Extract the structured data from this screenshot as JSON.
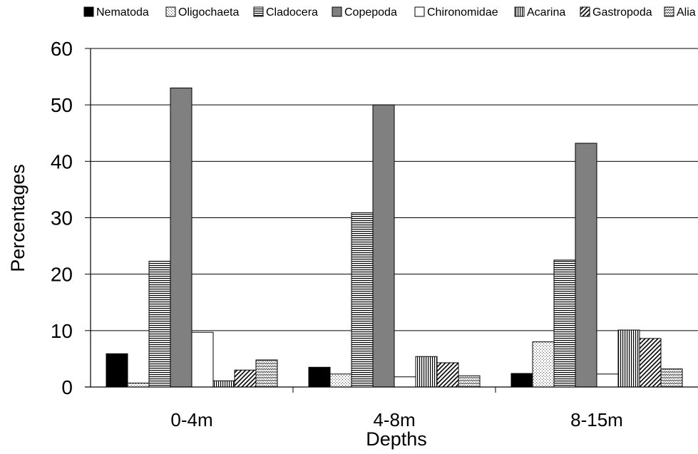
{
  "chart_data": {
    "type": "bar",
    "title": "",
    "xlabel": "Depths",
    "ylabel": "Percentages",
    "categories": [
      "0-4m",
      "4-8m",
      "8-15m"
    ],
    "ylim": [
      0,
      60
    ],
    "yticks": [
      0,
      10,
      20,
      30,
      40,
      50,
      60
    ],
    "grid": true,
    "legend_position": "top",
    "series": [
      {
        "name": "Nematoda",
        "pattern": "solid-black",
        "values": [
          5.9,
          3.5,
          2.4
        ]
      },
      {
        "name": "Oligochaeta",
        "pattern": "dots",
        "values": [
          0.7,
          2.3,
          8.0
        ]
      },
      {
        "name": "Cladocera",
        "pattern": "horizontal-lines",
        "values": [
          22.3,
          30.9,
          22.5
        ]
      },
      {
        "name": "Copepoda",
        "pattern": "solid-gray",
        "values": [
          53.0,
          50.0,
          43.2
        ]
      },
      {
        "name": "Chironomidae",
        "pattern": "white",
        "values": [
          9.7,
          1.8,
          2.3
        ]
      },
      {
        "name": "Acarina",
        "pattern": "vertical-lines",
        "values": [
          1.1,
          5.4,
          10.1
        ]
      },
      {
        "name": "Gastropoda",
        "pattern": "diagonal-lines",
        "values": [
          3.0,
          4.3,
          8.6
        ]
      },
      {
        "name": "Alia",
        "pattern": "zigzag",
        "values": [
          4.8,
          2.0,
          3.2
        ]
      }
    ]
  }
}
